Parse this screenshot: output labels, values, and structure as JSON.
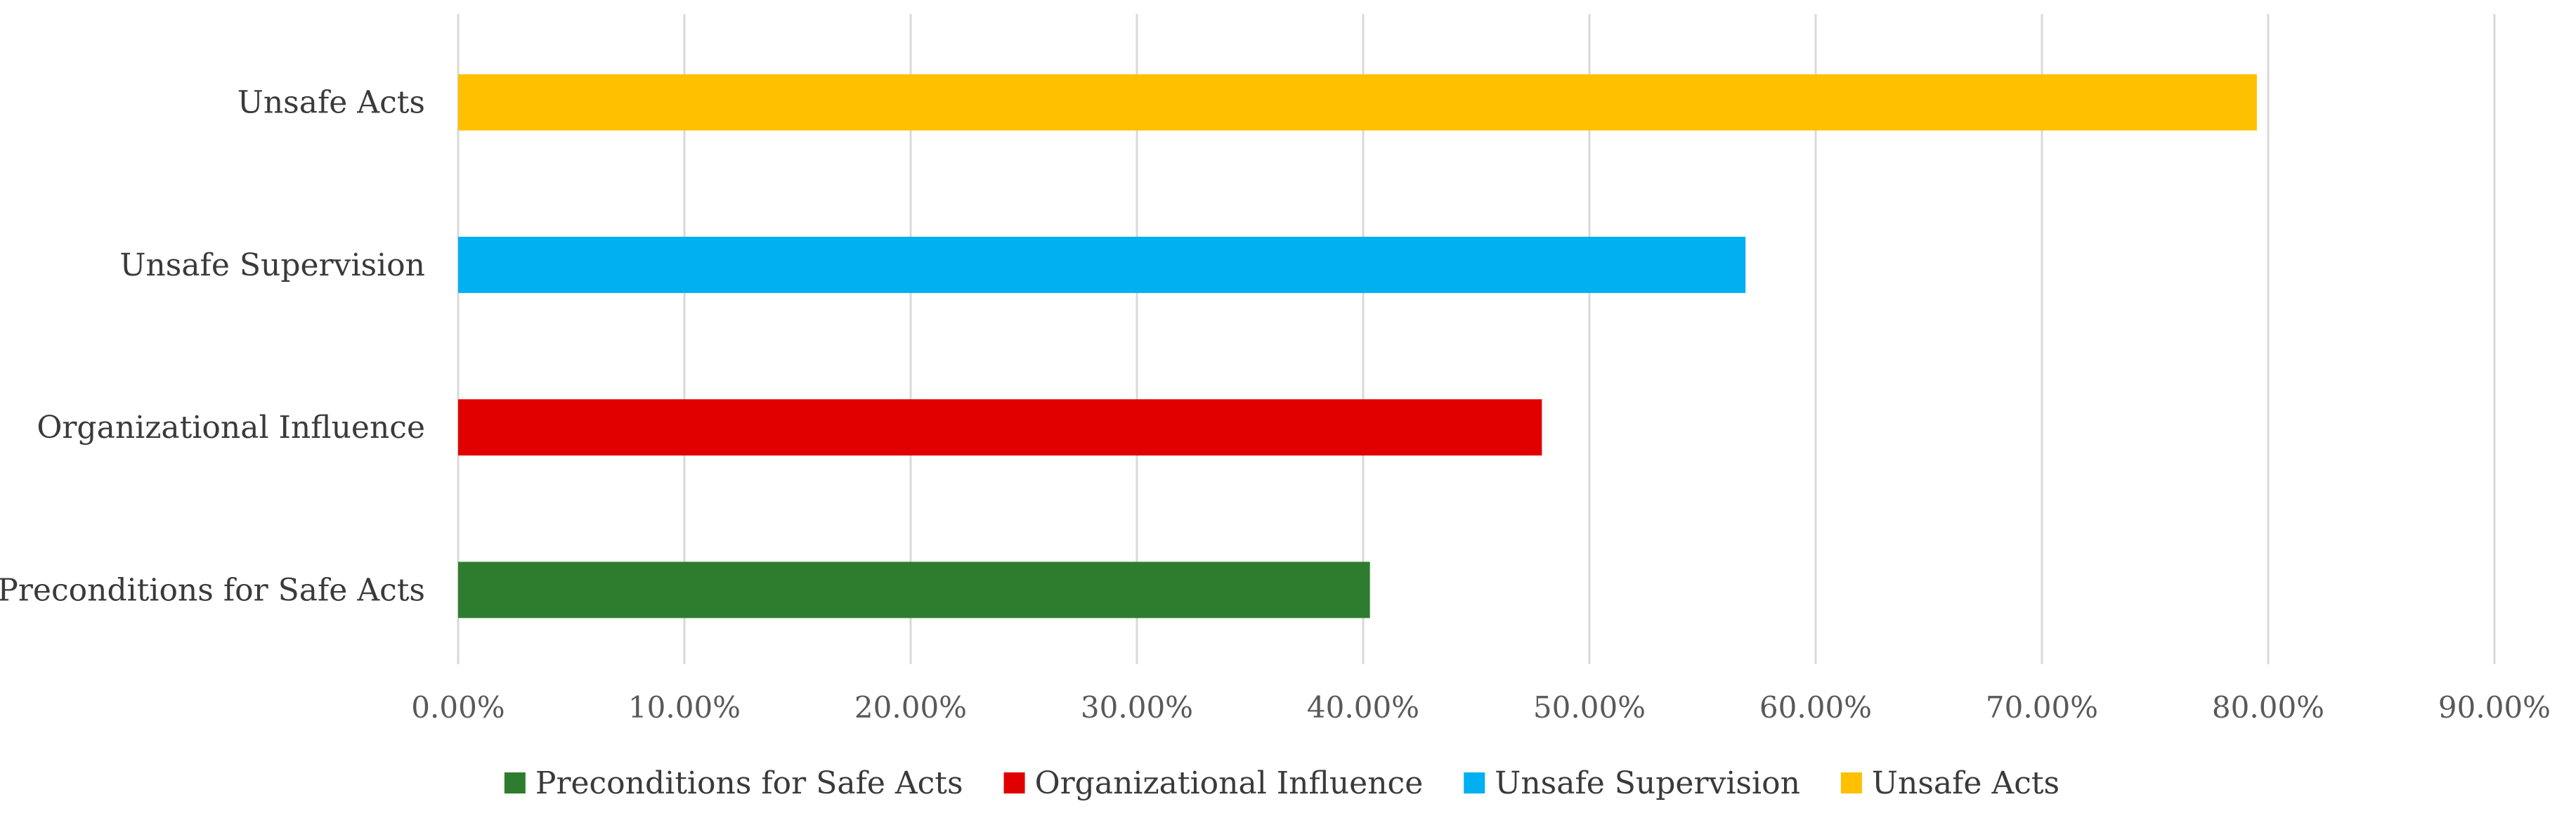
{
  "chart_data": {
    "type": "bar",
    "orientation": "horizontal",
    "title": "",
    "xlabel": "",
    "ylabel": "",
    "categories": [
      "Preconditions for Safe Acts",
      "Organizational Influence",
      "Unsafe Supervision",
      "Unsafe Acts"
    ],
    "values": [
      40.3,
      47.9,
      56.9,
      79.5
    ],
    "value_format": "percent",
    "xlim": [
      0,
      90
    ],
    "x_ticks": [
      0,
      10,
      20,
      30,
      40,
      50,
      60,
      70,
      80,
      90
    ],
    "x_tick_labels": [
      "0.00%",
      "10.00%",
      "20.00%",
      "30.00%",
      "40.00%",
      "50.00%",
      "60.00%",
      "70.00%",
      "80.00%",
      "90.00%"
    ],
    "grid": "vertical",
    "colors": [
      "#2e7d2e",
      "#e00000",
      "#00b0f0",
      "#ffc000"
    ],
    "legend": {
      "placement": "bottom",
      "entries": [
        "Preconditions for Safe Acts",
        "Organizational Influence",
        "Unsafe Supervision",
        "Unsafe Acts"
      ]
    }
  }
}
